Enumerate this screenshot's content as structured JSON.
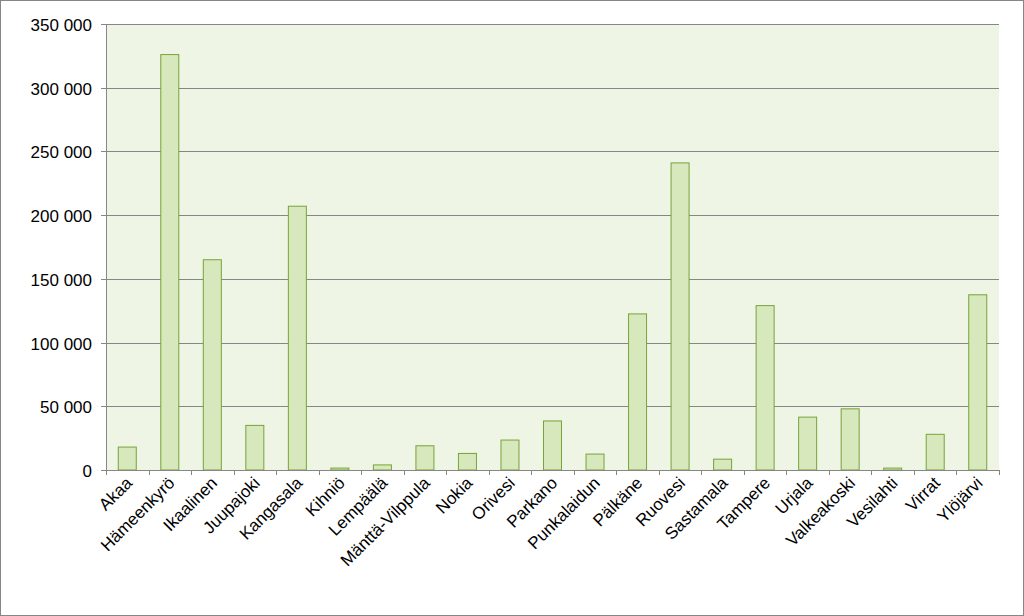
{
  "chart_data": {
    "type": "bar",
    "categories": [
      "Akaa",
      "Hämeenkyrö",
      "Ikaalinen",
      "Juupajoki",
      "Kangasala",
      "Kihniö",
      "Lempäälä",
      "Mänttä-Vilppula",
      "Nokia",
      "Orivesi",
      "Parkano",
      "Punkalaidun",
      "Pälkäne",
      "Ruovesi",
      "Sastamala",
      "Tampere",
      "Urjala",
      "Valkeakoski",
      "Vesilahti",
      "Virrat",
      "Ylöjärvi"
    ],
    "values": [
      18000,
      326000,
      165000,
      35000,
      207000,
      1500,
      4000,
      19000,
      13000,
      23500,
      38500,
      12500,
      122500,
      241000,
      8500,
      129000,
      41500,
      48000,
      1500,
      28000,
      137500
    ],
    "color": "#d7e8bc",
    "ylim": [
      0,
      350000
    ],
    "yticks": [
      0,
      {
        "value": 50000,
        "label": "50 000"
      },
      {
        "value": 100000,
        "label": "100 000"
      },
      {
        "value": 150000,
        "label": "150 000"
      },
      {
        "value": 200000,
        "label": "200 000"
      },
      {
        "value": 250000,
        "label": "250 000"
      },
      {
        "value": 300000,
        "label": "300 000"
      },
      {
        "value": 350000,
        "label": "350 000"
      }
    ],
    "grid": true
  }
}
